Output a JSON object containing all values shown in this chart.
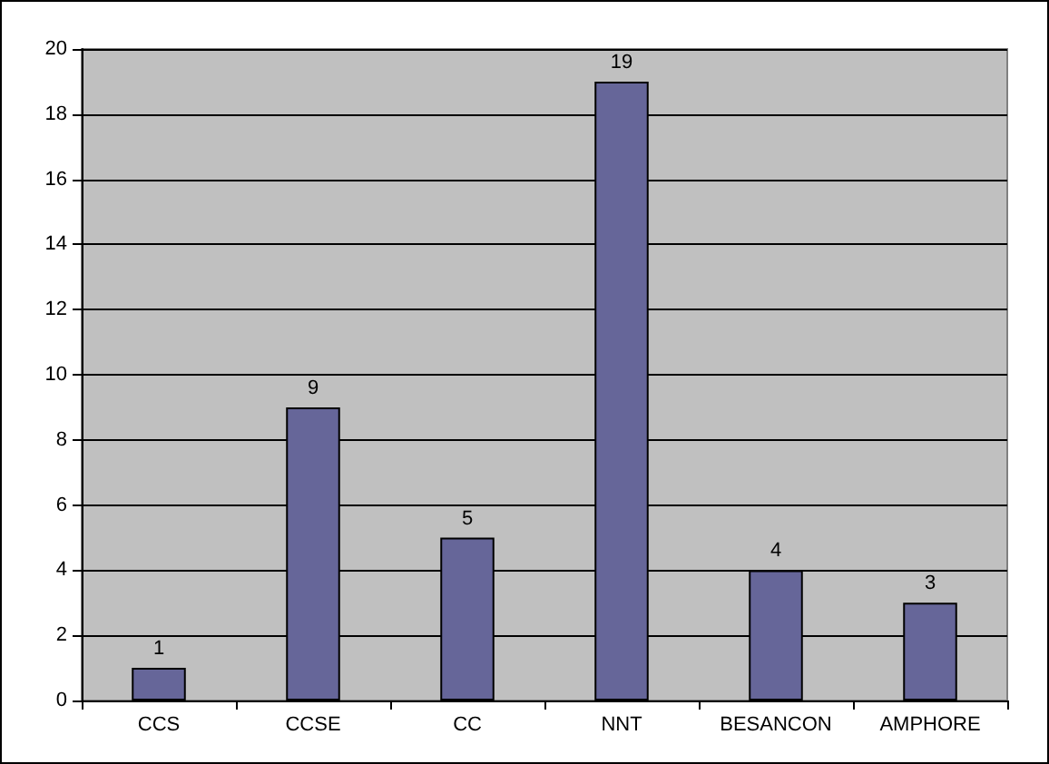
{
  "chart_data": {
    "type": "bar",
    "categories": [
      "CCS",
      "CCSE",
      "CC",
      "NNT",
      "BESANCON",
      "AMPHORE"
    ],
    "values": [
      1,
      9,
      5,
      19,
      4,
      3
    ],
    "color": "#666699",
    "ylim": [
      0,
      20
    ],
    "yticks": [
      0,
      2,
      4,
      6,
      8,
      10,
      12,
      14,
      16,
      18,
      20
    ],
    "grid": "y",
    "data_labels": true
  }
}
